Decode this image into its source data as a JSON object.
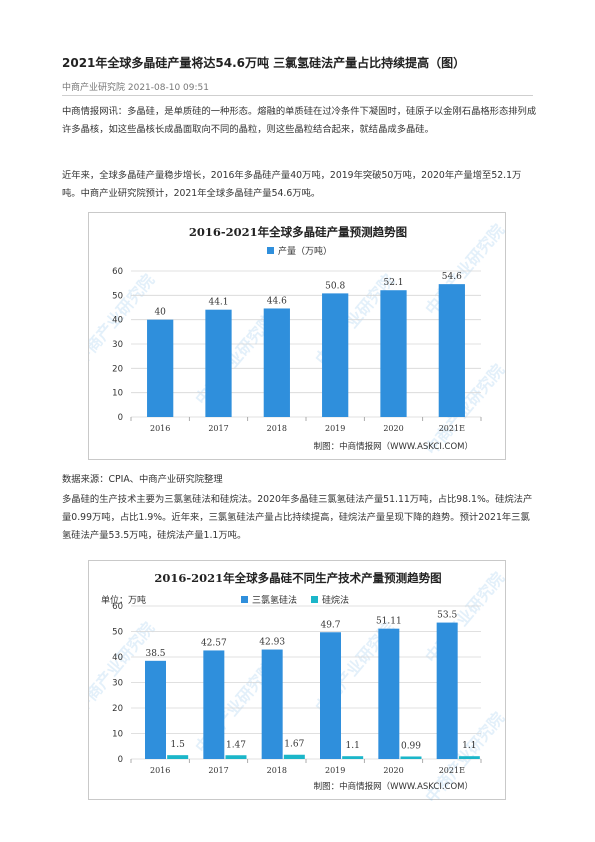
{
  "article": {
    "title": "2021年全球多晶硅产量将达54.6万吨 三氯氢硅法产量占比持续提高（图）",
    "meta": "中商产业研究院 2021-08-10 09:51",
    "paragraphs": [
      "中商情报网讯：多晶硅，是单质硅的一种形态。熔融的单质硅在过冷条件下凝固时，硅原子以金刚石晶格形态排列成许多晶核，如这些晶核长成晶面取向不同的晶粒，则这些晶粒结合起来，就结晶成多晶硅。",
      "近年来，全球多晶硅产量稳步增长，2016年多晶硅产量40万吨，2019年突破50万吨，2020年产量增至52.1万吨。中商产业研究院预计，2021年全球多晶硅产量54.6万吨。",
      "多晶硅的生产技术主要为三氯氢硅法和硅烷法。2020年多晶硅三氯氢硅法产量51.11万吨，占比98.1%。硅烷法产量0.99万吨，占比1.9%。近年来，三氯氢硅法产量占比持续提高，硅烷法产量呈现下降的趋势。预计2021年三氯氢硅法产量53.5万吨，硅烷法产量1.1万吨。"
    ],
    "source": "数据来源：CPIA、中商产业研究院整理"
  },
  "colors": {
    "bar_main": "#2f8fdc",
    "bar_secondary": "#1bb6c9",
    "grid": "#d6d6d6",
    "text": "#333333"
  },
  "chart_data": [
    {
      "type": "bar",
      "title": "2016-2021年全球多晶硅产量预测趋势图",
      "categories": [
        "2016",
        "2017",
        "2018",
        "2019",
        "2020",
        "2021E"
      ],
      "series": [
        {
          "name": "产量（万吨）",
          "values": [
            40,
            44.1,
            44.6,
            50.8,
            52.1,
            54.6
          ]
        }
      ],
      "data_labels": [
        "40",
        "44.1",
        "44.6",
        "50.8",
        "52.1",
        "54.6"
      ],
      "yticks": [
        "0",
        "10",
        "20",
        "30",
        "40",
        "50",
        "60"
      ],
      "ylim": [
        0,
        60
      ],
      "legend": "top-center",
      "grid": true,
      "credit": "制图：中商情报网（WWW.ASKCI.COM）",
      "watermark": "中商产业研究院"
    },
    {
      "type": "bar",
      "title": "2016-2021年全球多晶硅不同生产技术产量预测趋势图",
      "unit": "单位：万吨",
      "categories": [
        "2016",
        "2017",
        "2018",
        "2019",
        "2020",
        "2021E"
      ],
      "series": [
        {
          "name": "三氯氢硅法",
          "values": [
            38.5,
            42.57,
            42.93,
            49.7,
            51.11,
            53.5
          ],
          "labels": [
            "38.5",
            "42.57",
            "42.93",
            "49.7",
            "51.11",
            "53.5"
          ]
        },
        {
          "name": "硅烷法",
          "values": [
            1.5,
            1.47,
            1.67,
            1.1,
            0.99,
            1.1
          ],
          "labels": [
            "1.5",
            "1.47",
            "1.67",
            "1.1",
            "0.99",
            "1.1"
          ]
        }
      ],
      "yticks": [
        "0",
        "10",
        "20",
        "30",
        "40",
        "50",
        "60"
      ],
      "ylim": [
        0,
        60
      ],
      "legend": "top-center",
      "grid": true,
      "credit": "制图：中商情报网（WWW.ASKCI.COM）",
      "watermark": "中商产业研究院"
    }
  ]
}
